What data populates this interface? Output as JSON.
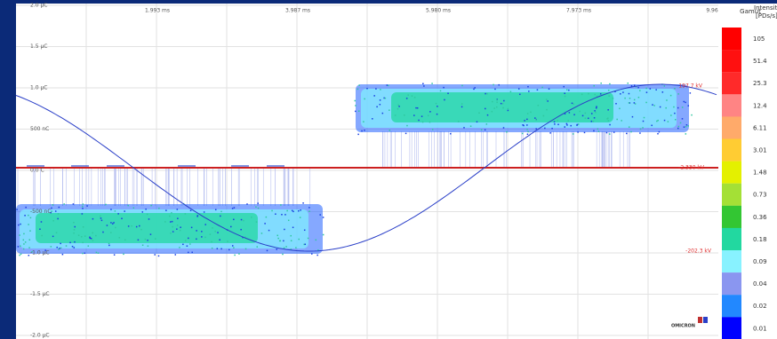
{
  "plot": {
    "y_labels": [
      "2.0 µC",
      "1.5 µC",
      "1.0 µC",
      "500 nC",
      "0.0 C",
      "-500 nC",
      "-1.0 µC",
      "-1.5 µC",
      "-2.0 µC"
    ],
    "x_labels": [
      "1.993 ms",
      "3.987 ms",
      "5.980 ms",
      "7.973 ms",
      "9.96"
    ],
    "voltage_labels": {
      "max": "197.7 kV",
      "zero": "-2.330 kV",
      "min": "-202.3 kV"
    },
    "logo": "OMICRON"
  },
  "legend": {
    "gamut": "Gamut",
    "intensity": "Intensity",
    "unit": "[PDs/s]",
    "items": [
      {
        "label": "105",
        "color": "#ff0000"
      },
      {
        "label": "51.4",
        "color": "#ff1010"
      },
      {
        "label": "25.3",
        "color": "#ff2a2a"
      },
      {
        "label": "12.4",
        "color": "#ff8484"
      },
      {
        "label": "6.11",
        "color": "#ffaa6a"
      },
      {
        "label": "3.01",
        "color": "#ffcc33"
      },
      {
        "label": "1.48",
        "color": "#e4f000"
      },
      {
        "label": "0.73",
        "color": "#a4e036"
      },
      {
        "label": "0.36",
        "color": "#33c633"
      },
      {
        "label": "0.18",
        "color": "#22d8a0"
      },
      {
        "label": "0.09",
        "color": "#88f2ff"
      },
      {
        "label": "0.04",
        "color": "#8a96f0"
      },
      {
        "label": "0.02",
        "color": "#2288ff"
      },
      {
        "label": "0.01",
        "color": "#0000ff"
      }
    ]
  }
}
